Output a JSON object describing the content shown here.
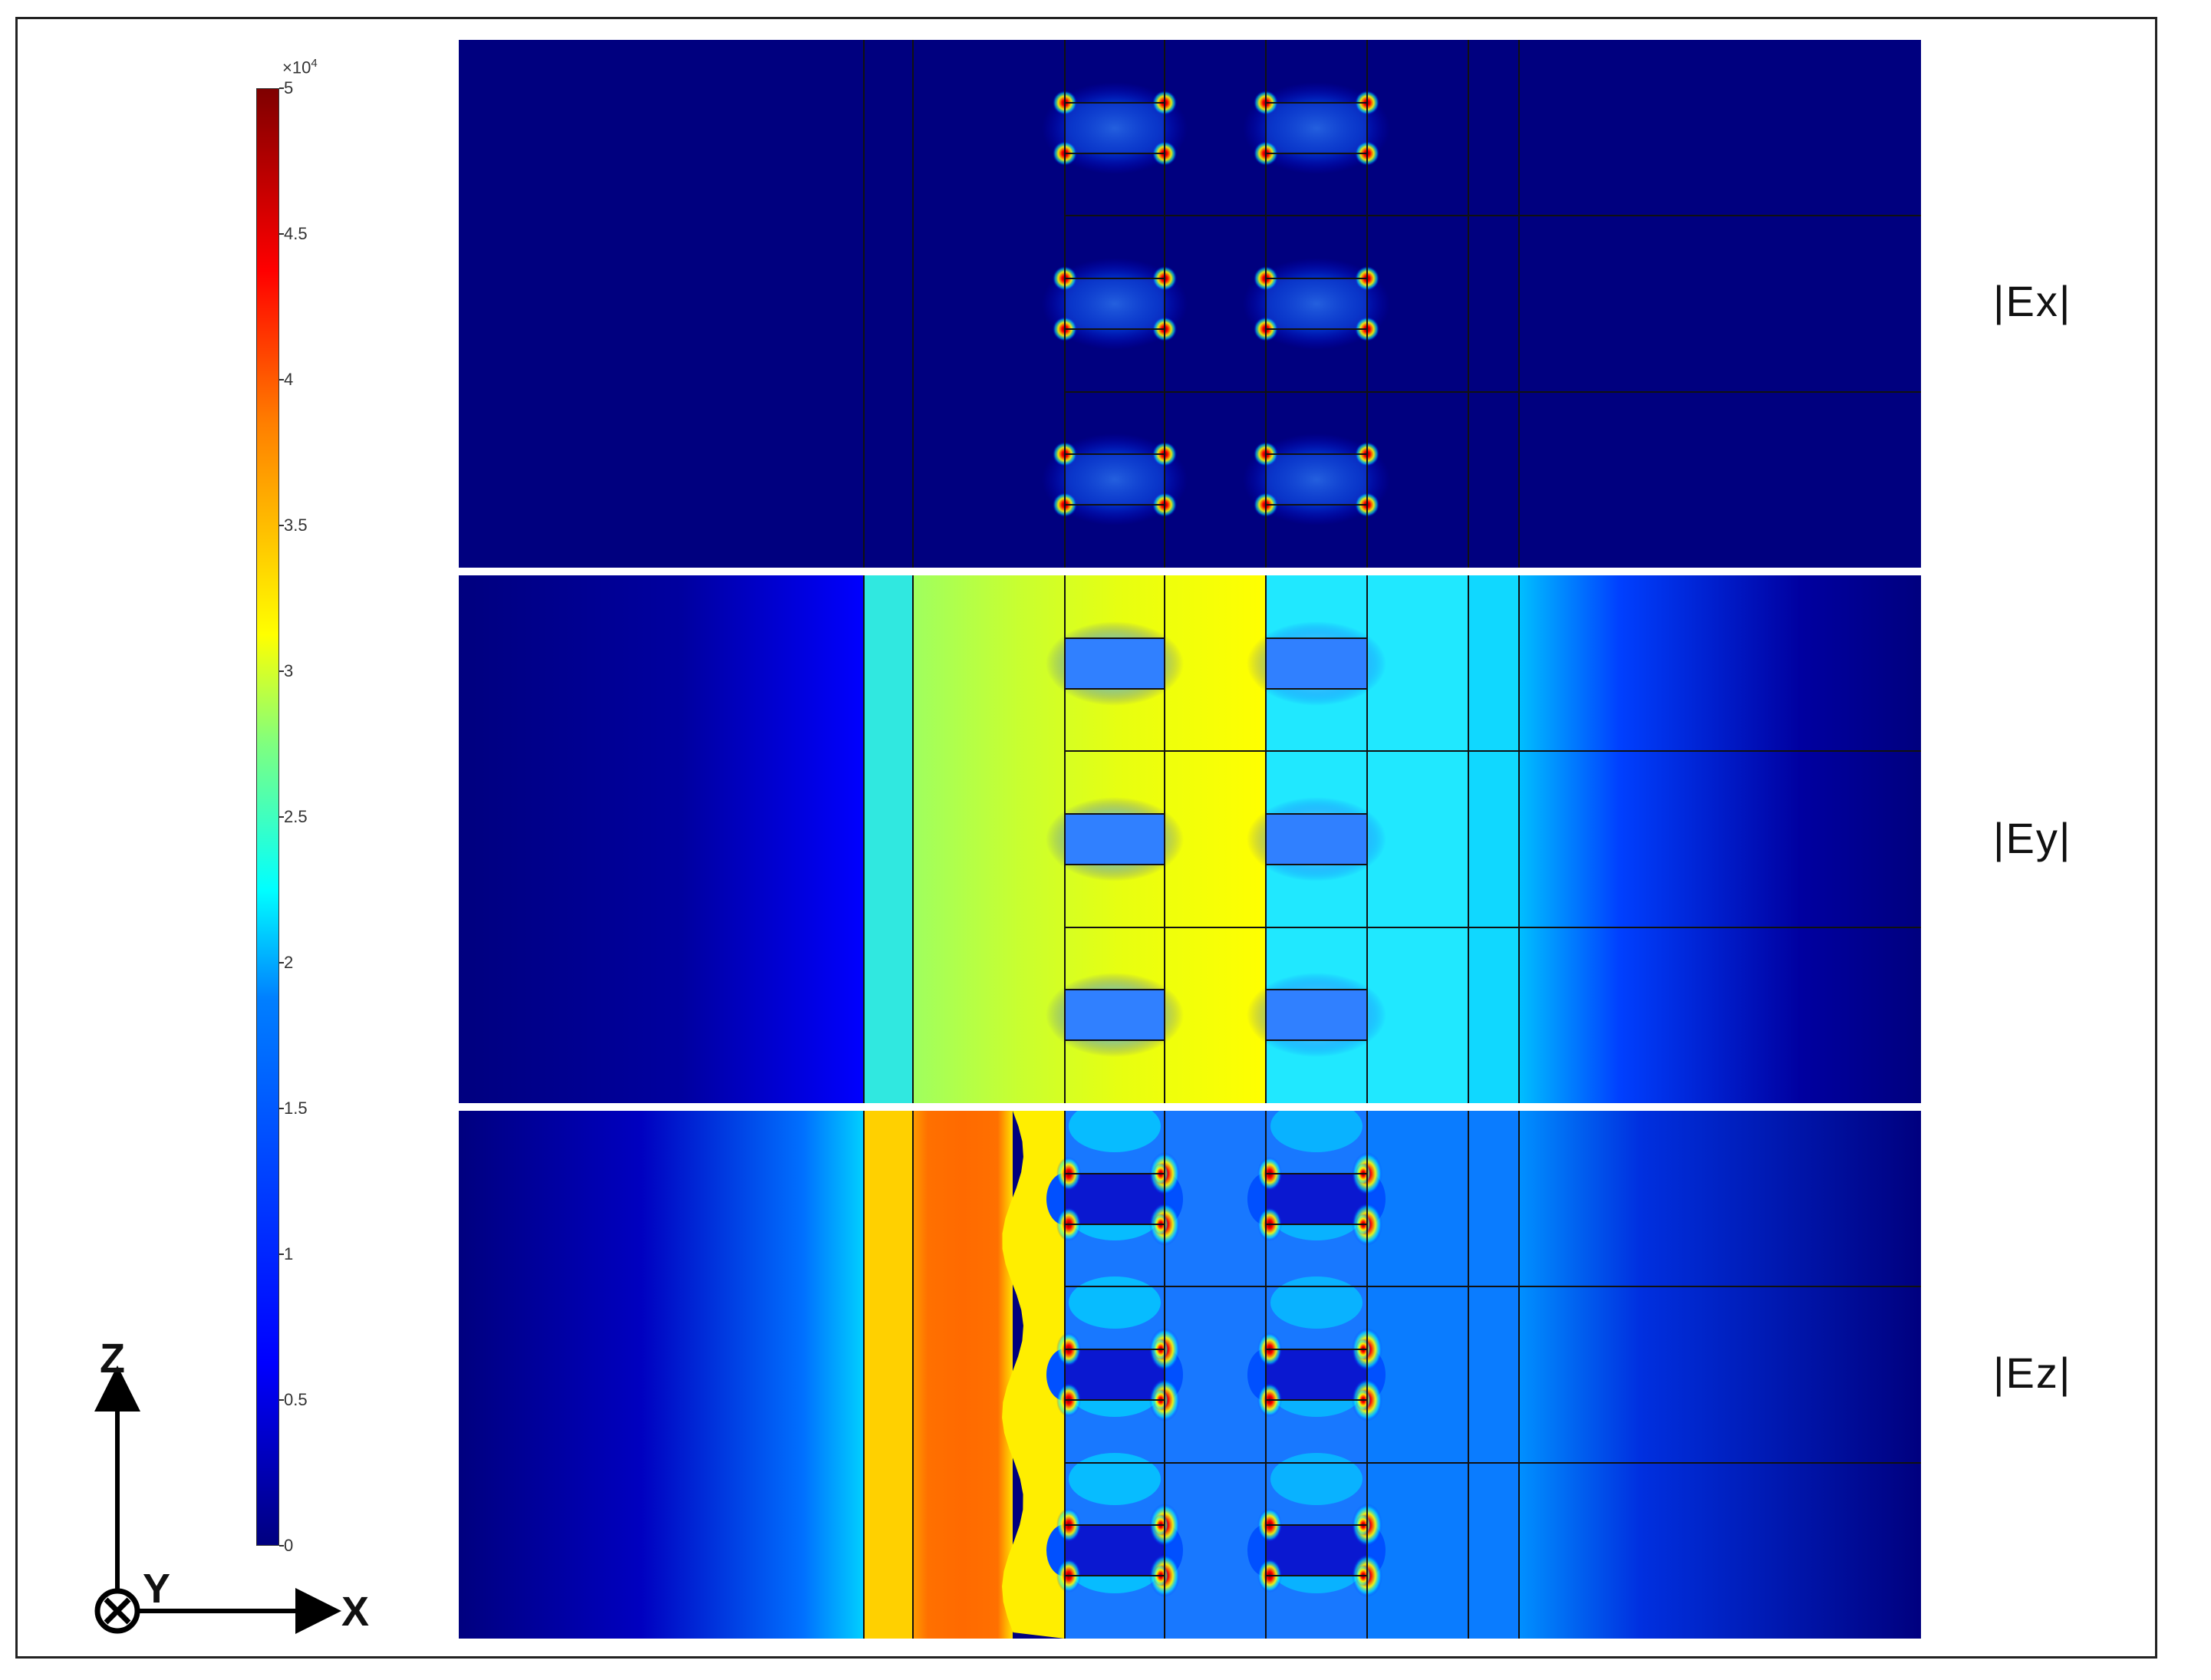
{
  "colorbar": {
    "exponent_base": "×10",
    "exponent_power": "4",
    "max": 5,
    "ticks": [
      "5",
      "4.5",
      "4",
      "3.5",
      "3",
      "2.5",
      "2",
      "1.5",
      "1",
      "0.5",
      "0"
    ],
    "colors": [
      "#00007f",
      "#0000ff",
      "#007fff",
      "#00ffff",
      "#7fff7f",
      "#ffff00",
      "#ff7f00",
      "#ff0000",
      "#7f0000"
    ]
  },
  "panels": [
    {
      "label": "|Ex|",
      "field": "Ex"
    },
    {
      "label": "|Ey|",
      "field": "Ey"
    },
    {
      "label": "|Ez|",
      "field": "Ez"
    }
  ],
  "axes": {
    "z_label": "Z",
    "y_label": "Y",
    "x_label": "X"
  }
}
